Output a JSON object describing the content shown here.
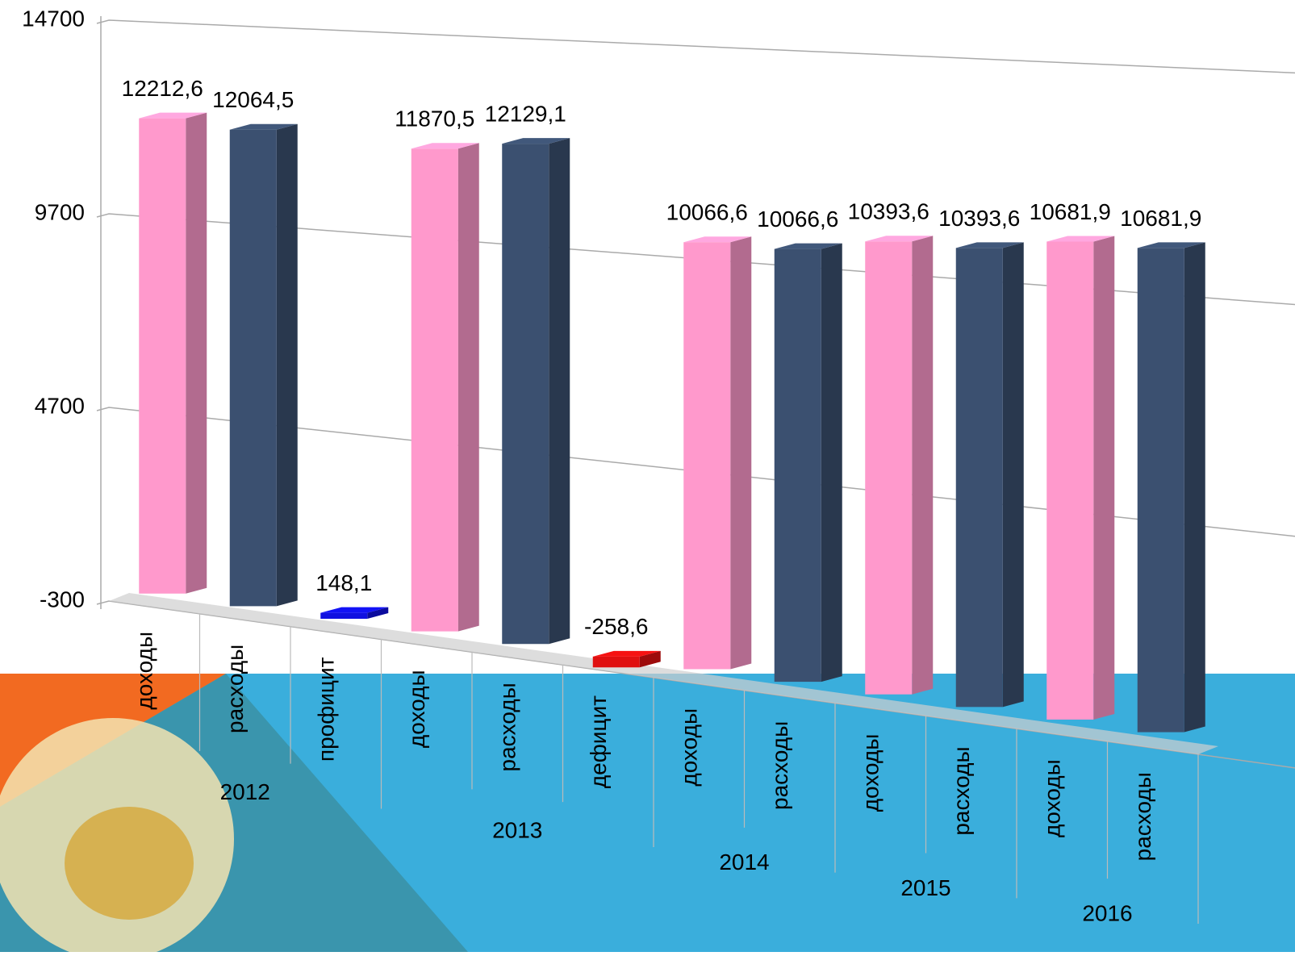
{
  "chart_data": {
    "type": "bar3d",
    "ylim": [
      -300,
      14700
    ],
    "yticks": [
      -300,
      4700,
      9700,
      14700
    ],
    "grid": true,
    "groups": [
      {
        "name": "2012",
        "categories": [
          "доходы",
          "расходы",
          "профицит"
        ],
        "values": [
          12212.6,
          12064.5,
          148.1
        ],
        "value_labels": [
          "12212,6",
          "12064,5",
          "148,1"
        ],
        "colors": [
          "#ff99cc",
          "#3b5070",
          "#1010e0"
        ]
      },
      {
        "name": "2013",
        "categories": [
          "доходы",
          "расходы",
          "дефицит"
        ],
        "values": [
          11870.5,
          12129.1,
          -258.6
        ],
        "value_labels": [
          "11870,5",
          "12129,1",
          "-258,6"
        ],
        "colors": [
          "#ff99cc",
          "#3b5070",
          "#e01010"
        ]
      },
      {
        "name": "2014",
        "categories": [
          "доходы",
          "расходы"
        ],
        "values": [
          10066.6,
          10066.6
        ],
        "value_labels": [
          "10066,6",
          "10066,6"
        ],
        "colors": [
          "#ff99cc",
          "#3b5070"
        ]
      },
      {
        "name": "2015",
        "categories": [
          "доходы",
          "расходы"
        ],
        "values": [
          10393.6,
          10393.6
        ],
        "value_labels": [
          "10393,6",
          "10393,6"
        ],
        "colors": [
          "#ff99cc",
          "#3b5070"
        ]
      },
      {
        "name": "2016",
        "categories": [
          "доходы",
          "расходы"
        ],
        "values": [
          10681.9,
          10681.9
        ],
        "value_labels": [
          "10681,9",
          "10681,9"
        ],
        "colors": [
          "#ff99cc",
          "#3b5070"
        ]
      }
    ]
  }
}
